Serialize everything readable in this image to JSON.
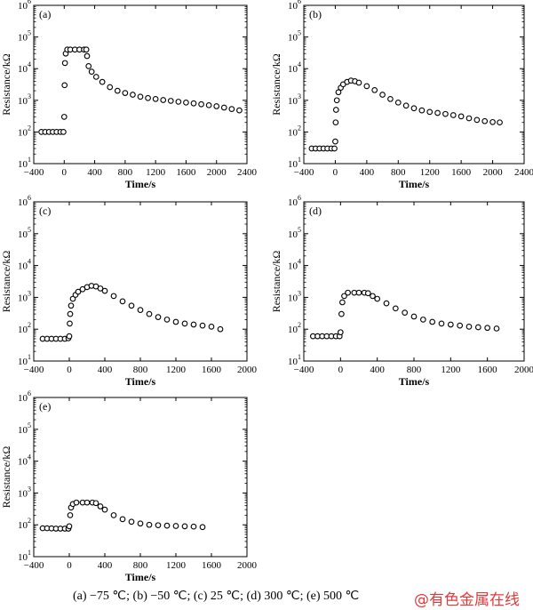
{
  "caption": {
    "text": "(a)  −75  ℃;  (b)  −50  ℃;  (c)  25  ℃; (d) 300  ℃; (e) 500  ℃",
    "watermark": "@有色金属在线"
  },
  "colors": {
    "axis": "#000000",
    "marker_stroke": "#000000",
    "marker_fill": "#ffffff",
    "watermark": "#e03a3a"
  },
  "chart_data": [
    {
      "type": "scatter",
      "panel_label": "(a)",
      "xlabel": "Time/s",
      "ylabel": "Resistance/kΩ",
      "xlim": [
        -400,
        2400
      ],
      "xticks": [
        -400,
        0,
        400,
        800,
        1200,
        1600,
        2000,
        2400
      ],
      "ylim_log10": [
        1,
        6
      ],
      "ytick_labels": [
        "10",
        "10",
        "10",
        "10",
        "10",
        "10"
      ],
      "ytick_exponents": [
        "1",
        "2",
        "3",
        "4",
        "5",
        "6"
      ],
      "y_scale": "log",
      "series": [
        {
          "points": [
            [
              -300,
              100
            ],
            [
              -250,
              100
            ],
            [
              -200,
              100
            ],
            [
              -150,
              100
            ],
            [
              -100,
              100
            ],
            [
              -50,
              100
            ],
            [
              -10,
              100
            ],
            [
              0,
              300
            ],
            [
              5,
              3000
            ],
            [
              10,
              15000
            ],
            [
              20,
              30000
            ],
            [
              40,
              40000
            ],
            [
              80,
              40000
            ],
            [
              140,
              40000
            ],
            [
              200,
              40000
            ],
            [
              260,
              40000
            ],
            [
              290,
              40000
            ],
            [
              300,
              25000
            ],
            [
              320,
              12000
            ],
            [
              360,
              8000
            ],
            [
              420,
              5500
            ],
            [
              500,
              3800
            ],
            [
              600,
              2600
            ],
            [
              700,
              2000
            ],
            [
              800,
              1700
            ],
            [
              900,
              1500
            ],
            [
              1000,
              1300
            ],
            [
              1100,
              1180
            ],
            [
              1200,
              1100
            ],
            [
              1300,
              1020
            ],
            [
              1400,
              960
            ],
            [
              1500,
              900
            ],
            [
              1600,
              850
            ],
            [
              1700,
              800
            ],
            [
              1800,
              750
            ],
            [
              1900,
              700
            ],
            [
              2000,
              650
            ],
            [
              2100,
              590
            ],
            [
              2200,
              530
            ],
            [
              2300,
              480
            ]
          ]
        }
      ]
    },
    {
      "type": "scatter",
      "panel_label": "(b)",
      "xlabel": "Time/s",
      "ylabel": "Resistance/kΩ",
      "xlim": [
        -400,
        2400
      ],
      "xticks": [
        -400,
        0,
        400,
        800,
        1200,
        1600,
        2000,
        2400
      ],
      "ylim_log10": [
        1,
        6
      ],
      "ytick_labels": [
        "10",
        "10",
        "10",
        "10",
        "10",
        "10"
      ],
      "ytick_exponents": [
        "1",
        "2",
        "3",
        "4",
        "5",
        "6"
      ],
      "y_scale": "log",
      "series": [
        {
          "points": [
            [
              -300,
              30
            ],
            [
              -250,
              30
            ],
            [
              -200,
              30
            ],
            [
              -150,
              30
            ],
            [
              -100,
              30
            ],
            [
              -50,
              30
            ],
            [
              -10,
              30
            ],
            [
              0,
              50
            ],
            [
              5,
              200
            ],
            [
              10,
              500
            ],
            [
              20,
              1000
            ],
            [
              40,
              1800
            ],
            [
              70,
              2500
            ],
            [
              100,
              3200
            ],
            [
              150,
              3800
            ],
            [
              200,
              4200
            ],
            [
              250,
              4000
            ],
            [
              300,
              3600
            ],
            [
              400,
              2800
            ],
            [
              500,
              2100
            ],
            [
              600,
              1500
            ],
            [
              700,
              1100
            ],
            [
              800,
              850
            ],
            [
              900,
              680
            ],
            [
              1000,
              560
            ],
            [
              1100,
              480
            ],
            [
              1200,
              430
            ],
            [
              1300,
              400
            ],
            [
              1400,
              370
            ],
            [
              1500,
              340
            ],
            [
              1600,
              310
            ],
            [
              1700,
              270
            ],
            [
              1800,
              240
            ],
            [
              1900,
              220
            ],
            [
              2000,
              205
            ],
            [
              2090,
              200
            ]
          ]
        }
      ]
    },
    {
      "type": "scatter",
      "panel_label": "(c)",
      "xlabel": "Time/s",
      "ylabel": "Resistance/kΩ",
      "xlim": [
        -400,
        2000
      ],
      "xticks": [
        -400,
        0,
        400,
        800,
        1200,
        1600,
        2000
      ],
      "ylim_log10": [
        1,
        6
      ],
      "ytick_labels": [
        "10",
        "10",
        "10",
        "10",
        "10",
        "10"
      ],
      "ytick_exponents": [
        "1",
        "2",
        "3",
        "4",
        "5",
        "6"
      ],
      "y_scale": "log",
      "series": [
        {
          "points": [
            [
              -300,
              50
            ],
            [
              -250,
              50
            ],
            [
              -200,
              50
            ],
            [
              -150,
              50
            ],
            [
              -100,
              50
            ],
            [
              -50,
              50
            ],
            [
              -10,
              52
            ],
            [
              0,
              60
            ],
            [
              5,
              150
            ],
            [
              10,
              300
            ],
            [
              20,
              550
            ],
            [
              40,
              900
            ],
            [
              70,
              1200
            ],
            [
              100,
              1500
            ],
            [
              150,
              1800
            ],
            [
              200,
              2100
            ],
            [
              250,
              2300
            ],
            [
              300,
              2200
            ],
            [
              350,
              1900
            ],
            [
              400,
              1600
            ],
            [
              500,
              1100
            ],
            [
              600,
              750
            ],
            [
              700,
              550
            ],
            [
              800,
              400
            ],
            [
              900,
              300
            ],
            [
              1000,
              240
            ],
            [
              1100,
              200
            ],
            [
              1200,
              170
            ],
            [
              1300,
              150
            ],
            [
              1400,
              140
            ],
            [
              1500,
              130
            ],
            [
              1600,
              120
            ],
            [
              1700,
              100
            ]
          ]
        }
      ]
    },
    {
      "type": "scatter",
      "panel_label": "(d)",
      "xlabel": "Time/s",
      "ylabel": "Resistance/kΩ",
      "xlim": [
        -400,
        2000
      ],
      "xticks": [
        -400,
        0,
        400,
        800,
        1200,
        1600,
        2000
      ],
      "ylim_log10": [
        1,
        6
      ],
      "ytick_labels": [
        "10",
        "10",
        "10",
        "10",
        "10",
        "10"
      ],
      "ytick_exponents": [
        "1",
        "2",
        "3",
        "4",
        "5",
        "6"
      ],
      "y_scale": "log",
      "series": [
        {
          "points": [
            [
              -300,
              60
            ],
            [
              -250,
              60
            ],
            [
              -200,
              60
            ],
            [
              -150,
              60
            ],
            [
              -100,
              60
            ],
            [
              -50,
              60
            ],
            [
              -10,
              60
            ],
            [
              0,
              80
            ],
            [
              10,
              300
            ],
            [
              20,
              700
            ],
            [
              40,
              1100
            ],
            [
              80,
              1400
            ],
            [
              150,
              1400
            ],
            [
              200,
              1400
            ],
            [
              260,
              1400
            ],
            [
              300,
              1350
            ],
            [
              350,
              1100
            ],
            [
              400,
              900
            ],
            [
              500,
              650
            ],
            [
              600,
              450
            ],
            [
              700,
              330
            ],
            [
              800,
              250
            ],
            [
              900,
              200
            ],
            [
              1000,
              170
            ],
            [
              1100,
              150
            ],
            [
              1200,
              140
            ],
            [
              1300,
              130
            ],
            [
              1400,
              120
            ],
            [
              1500,
              115
            ],
            [
              1600,
              110
            ],
            [
              1700,
              105
            ]
          ]
        }
      ]
    },
    {
      "type": "scatter",
      "panel_label": "(e)",
      "xlabel": "Time/s",
      "ylabel": "Resistance/kΩ",
      "xlim": [
        -400,
        2000
      ],
      "xticks": [
        -400,
        0,
        400,
        800,
        1200,
        1600,
        2000
      ],
      "ylim_log10": [
        1,
        6
      ],
      "ytick_labels": [
        "10",
        "10",
        "10",
        "10",
        "10",
        "10"
      ],
      "ytick_exponents": [
        "1",
        "2",
        "3",
        "4",
        "5",
        "6"
      ],
      "y_scale": "log",
      "series": [
        {
          "points": [
            [
              -300,
              78
            ],
            [
              -250,
              78
            ],
            [
              -200,
              77
            ],
            [
              -150,
              76
            ],
            [
              -100,
              76
            ],
            [
              -50,
              76
            ],
            [
              -10,
              76
            ],
            [
              0,
              90
            ],
            [
              10,
              200
            ],
            [
              20,
              350
            ],
            [
              40,
              450
            ],
            [
              80,
              500
            ],
            [
              150,
              500
            ],
            [
              200,
              500
            ],
            [
              260,
              500
            ],
            [
              300,
              480
            ],
            [
              350,
              380
            ],
            [
              400,
              300
            ],
            [
              500,
              200
            ],
            [
              600,
              150
            ],
            [
              700,
              125
            ],
            [
              800,
              110
            ],
            [
              900,
              100
            ],
            [
              1000,
              97
            ],
            [
              1100,
              94
            ],
            [
              1200,
              92
            ],
            [
              1300,
              90
            ],
            [
              1400,
              88
            ],
            [
              1500,
              85
            ]
          ]
        }
      ]
    }
  ]
}
